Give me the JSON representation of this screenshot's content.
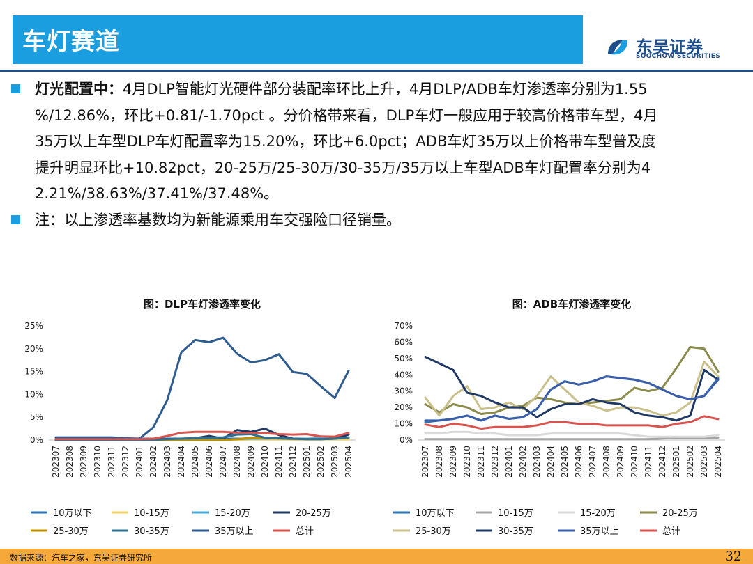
{
  "header": {
    "title": "车灯赛道",
    "logo_cn": "东吴证券",
    "logo_en": "SOOCHOW SECURITIES"
  },
  "bullets": [
    {
      "label": "灯光配置中：",
      "lines": [
        "4月DLP智能灯光硬件部分装配率环比上升，4月DLP/ADB车灯渗透率分别为1.55",
        "%/12.86%，环比+0.81/-1.70pct 。分价格带来看，DLP车灯一般应用于较高价格带车型，4月",
        "35万以上车型DLP车灯配置率为15.20%，环比+6.0pct；ADB车灯35万以上价格带车型普及度",
        "提升明显环比+10.82pct，20-25万/25-30万/30-35万/35万以上车型ADB车灯配置率分别为4",
        "2.21%/38.63%/37.41%/37.48%。"
      ]
    },
    {
      "label": "",
      "lines": [
        "注：以上渗透率基数均为新能源乘用车交强险口径销量。"
      ]
    }
  ],
  "footer": {
    "source": "数据来源：汽车之家，东吴证券研究所",
    "page": "32"
  },
  "chart_data": [
    {
      "type": "line",
      "title": "图：DLP车灯渗透率变化",
      "x": [
        "202307",
        "202308",
        "202309",
        "202310",
        "202311",
        "202312",
        "202401",
        "202402",
        "202403",
        "202404",
        "202405",
        "202406",
        "202407",
        "202408",
        "202409",
        "202410",
        "202411",
        "202412",
        "202501",
        "202502",
        "202503",
        "202504"
      ],
      "ylim": [
        0,
        25
      ],
      "yticks": [
        "0%",
        "5%",
        "10%",
        "15%",
        "20%",
        "25%"
      ],
      "ytick_values": [
        0,
        5,
        10,
        15,
        20,
        25
      ],
      "grid": false,
      "legend": "bottom",
      "series": [
        {
          "name": "10万以下",
          "color": "#2e75b6",
          "values": [
            0.6,
            0.6,
            0.6,
            0.6,
            0.6,
            0.4,
            0.3,
            0.3,
            0.3,
            0.3,
            0.3,
            0.3,
            0.3,
            0.3,
            0.3,
            0.3,
            0.3,
            0.3,
            0.3,
            0.3,
            0.3,
            0.4
          ]
        },
        {
          "name": "10-15万",
          "color": "#f2d16b",
          "values": [
            0,
            0,
            0,
            0,
            0,
            0,
            0,
            0,
            0,
            0,
            0,
            0,
            0,
            0,
            0.1,
            0.1,
            0.1,
            0.1,
            0.1,
            0.1,
            0.1,
            0.1
          ]
        },
        {
          "name": "15-20万",
          "color": "#4aa8d8",
          "values": [
            0,
            0,
            0,
            0,
            0,
            0,
            0,
            0,
            0,
            0,
            0,
            0,
            0,
            0.2,
            0.3,
            0.3,
            0.4,
            0.3,
            0.3,
            0.4,
            0.4,
            0.5
          ]
        },
        {
          "name": "20-25万",
          "color": "#1f3864",
          "values": [
            0.1,
            0.1,
            0.1,
            0.1,
            0.1,
            0.1,
            0.1,
            0.1,
            0.2,
            0.3,
            0.4,
            0.9,
            0.3,
            2.2,
            1.8,
            2.5,
            1.1,
            0.3,
            0.2,
            0.2,
            0.3,
            1.2
          ]
        },
        {
          "name": "25-30万",
          "color": "#bf9000",
          "values": [
            0,
            0,
            0,
            0,
            0,
            0,
            0,
            0,
            0,
            0,
            0,
            0,
            0,
            0.2,
            0.5,
            0.4,
            0.3,
            0.2,
            0.2,
            0.2,
            0.3,
            0.5
          ]
        },
        {
          "name": "30-35万",
          "color": "#2f6f8f",
          "values": [
            0,
            0,
            0,
            0,
            0,
            0,
            0,
            0,
            0.2,
            0.3,
            0.4,
            0.5,
            0.6,
            1.2,
            1.3,
            0.5,
            0.4,
            0.3,
            0.2,
            0.2,
            0.3,
            0.6
          ]
        },
        {
          "name": "35万以上",
          "color": "#2e5b8e",
          "values": [
            0.5,
            0.5,
            0.5,
            0.5,
            0.5,
            0.3,
            0.3,
            2.8,
            8.8,
            19.2,
            21.9,
            21.4,
            22.4,
            18.9,
            17.0,
            17.5,
            18.8,
            14.9,
            14.5,
            11.8,
            9.2,
            15.2
          ]
        },
        {
          "name": "总计",
          "color": "#d9534f",
          "values": [
            0.2,
            0.2,
            0.2,
            0.2,
            0.2,
            0.2,
            0.2,
            0.3,
            0.9,
            1.6,
            1.8,
            1.8,
            1.8,
            1.6,
            1.6,
            1.5,
            1.3,
            1.2,
            1.3,
            0.8,
            0.74,
            1.55
          ]
        }
      ]
    },
    {
      "type": "line",
      "title": "图：ADB车灯渗透率变化",
      "x": [
        "202307",
        "202308",
        "202309",
        "202310",
        "202311",
        "202312",
        "202401",
        "202402",
        "202403",
        "202404",
        "202405",
        "202406",
        "202407",
        "202408",
        "202409",
        "202410",
        "202411",
        "202412",
        "202501",
        "202502",
        "202503",
        "202504"
      ],
      "ylim": [
        0,
        70
      ],
      "yticks": [
        "0%",
        "10%",
        "20%",
        "30%",
        "40%",
        "50%",
        "60%",
        "70%"
      ],
      "ytick_values": [
        0,
        10,
        20,
        30,
        40,
        50,
        60,
        70
      ],
      "grid": false,
      "legend": "bottom",
      "series": [
        {
          "name": "10万以下",
          "color": "#2e75b6",
          "values": [
            11,
            12,
            13,
            15,
            12,
            15,
            13,
            14,
            19,
            31,
            36,
            34,
            36,
            39,
            38,
            37,
            35,
            31,
            27,
            25,
            27,
            38
          ]
        },
        {
          "name": "10-15万",
          "color": "#a6a6a6",
          "values": [
            0.5,
            0.5,
            0.5,
            0.5,
            0.5,
            0.5,
            0.5,
            0.5,
            0.5,
            0.5,
            0.5,
            0.5,
            0.5,
            0.5,
            0.5,
            0.5,
            0.5,
            1,
            1.5,
            1.5,
            1.5,
            1.5
          ]
        },
        {
          "name": "15-20万",
          "color": "#d9d9d9",
          "values": [
            4,
            4,
            5,
            5,
            4,
            4,
            3,
            3,
            3,
            4,
            4,
            4,
            4,
            4,
            4,
            3,
            2,
            2,
            2,
            2,
            2,
            3
          ]
        },
        {
          "name": "20-25万",
          "color": "#8b8b4b",
          "values": [
            22,
            17,
            22,
            20,
            16,
            17,
            20,
            21,
            26,
            25,
            23,
            22,
            23,
            24,
            25,
            32,
            30,
            32,
            44,
            57,
            56,
            42
          ]
        },
        {
          "name": "25-30万",
          "color": "#c9c08c",
          "values": [
            26,
            15,
            27,
            33,
            19,
            20,
            23,
            19,
            27,
            39,
            31,
            23,
            21,
            18,
            20,
            20,
            18,
            15,
            17,
            23,
            48,
            39
          ]
        },
        {
          "name": "30-35万",
          "color": "#1f3864",
          "values": [
            51,
            47,
            43,
            29,
            27,
            23,
            20,
            20,
            14,
            19,
            22,
            22,
            25,
            23,
            22,
            17,
            15,
            14,
            12,
            15,
            43,
            37
          ]
        },
        {
          "name": "35万以上",
          "color": "#3a5ea8",
          "values": [
            12,
            12,
            13,
            15,
            12,
            15,
            13,
            14,
            19,
            31,
            36,
            34,
            36,
            39,
            38,
            37,
            35,
            31,
            27,
            25,
            27,
            37
          ]
        },
        {
          "name": "总计",
          "color": "#d9534f",
          "values": [
            9.5,
            8,
            10,
            9,
            7,
            8,
            8,
            8,
            9,
            11,
            11,
            10,
            10,
            9,
            9,
            9,
            9,
            8,
            10,
            11,
            14.56,
            12.86
          ]
        }
      ]
    }
  ]
}
